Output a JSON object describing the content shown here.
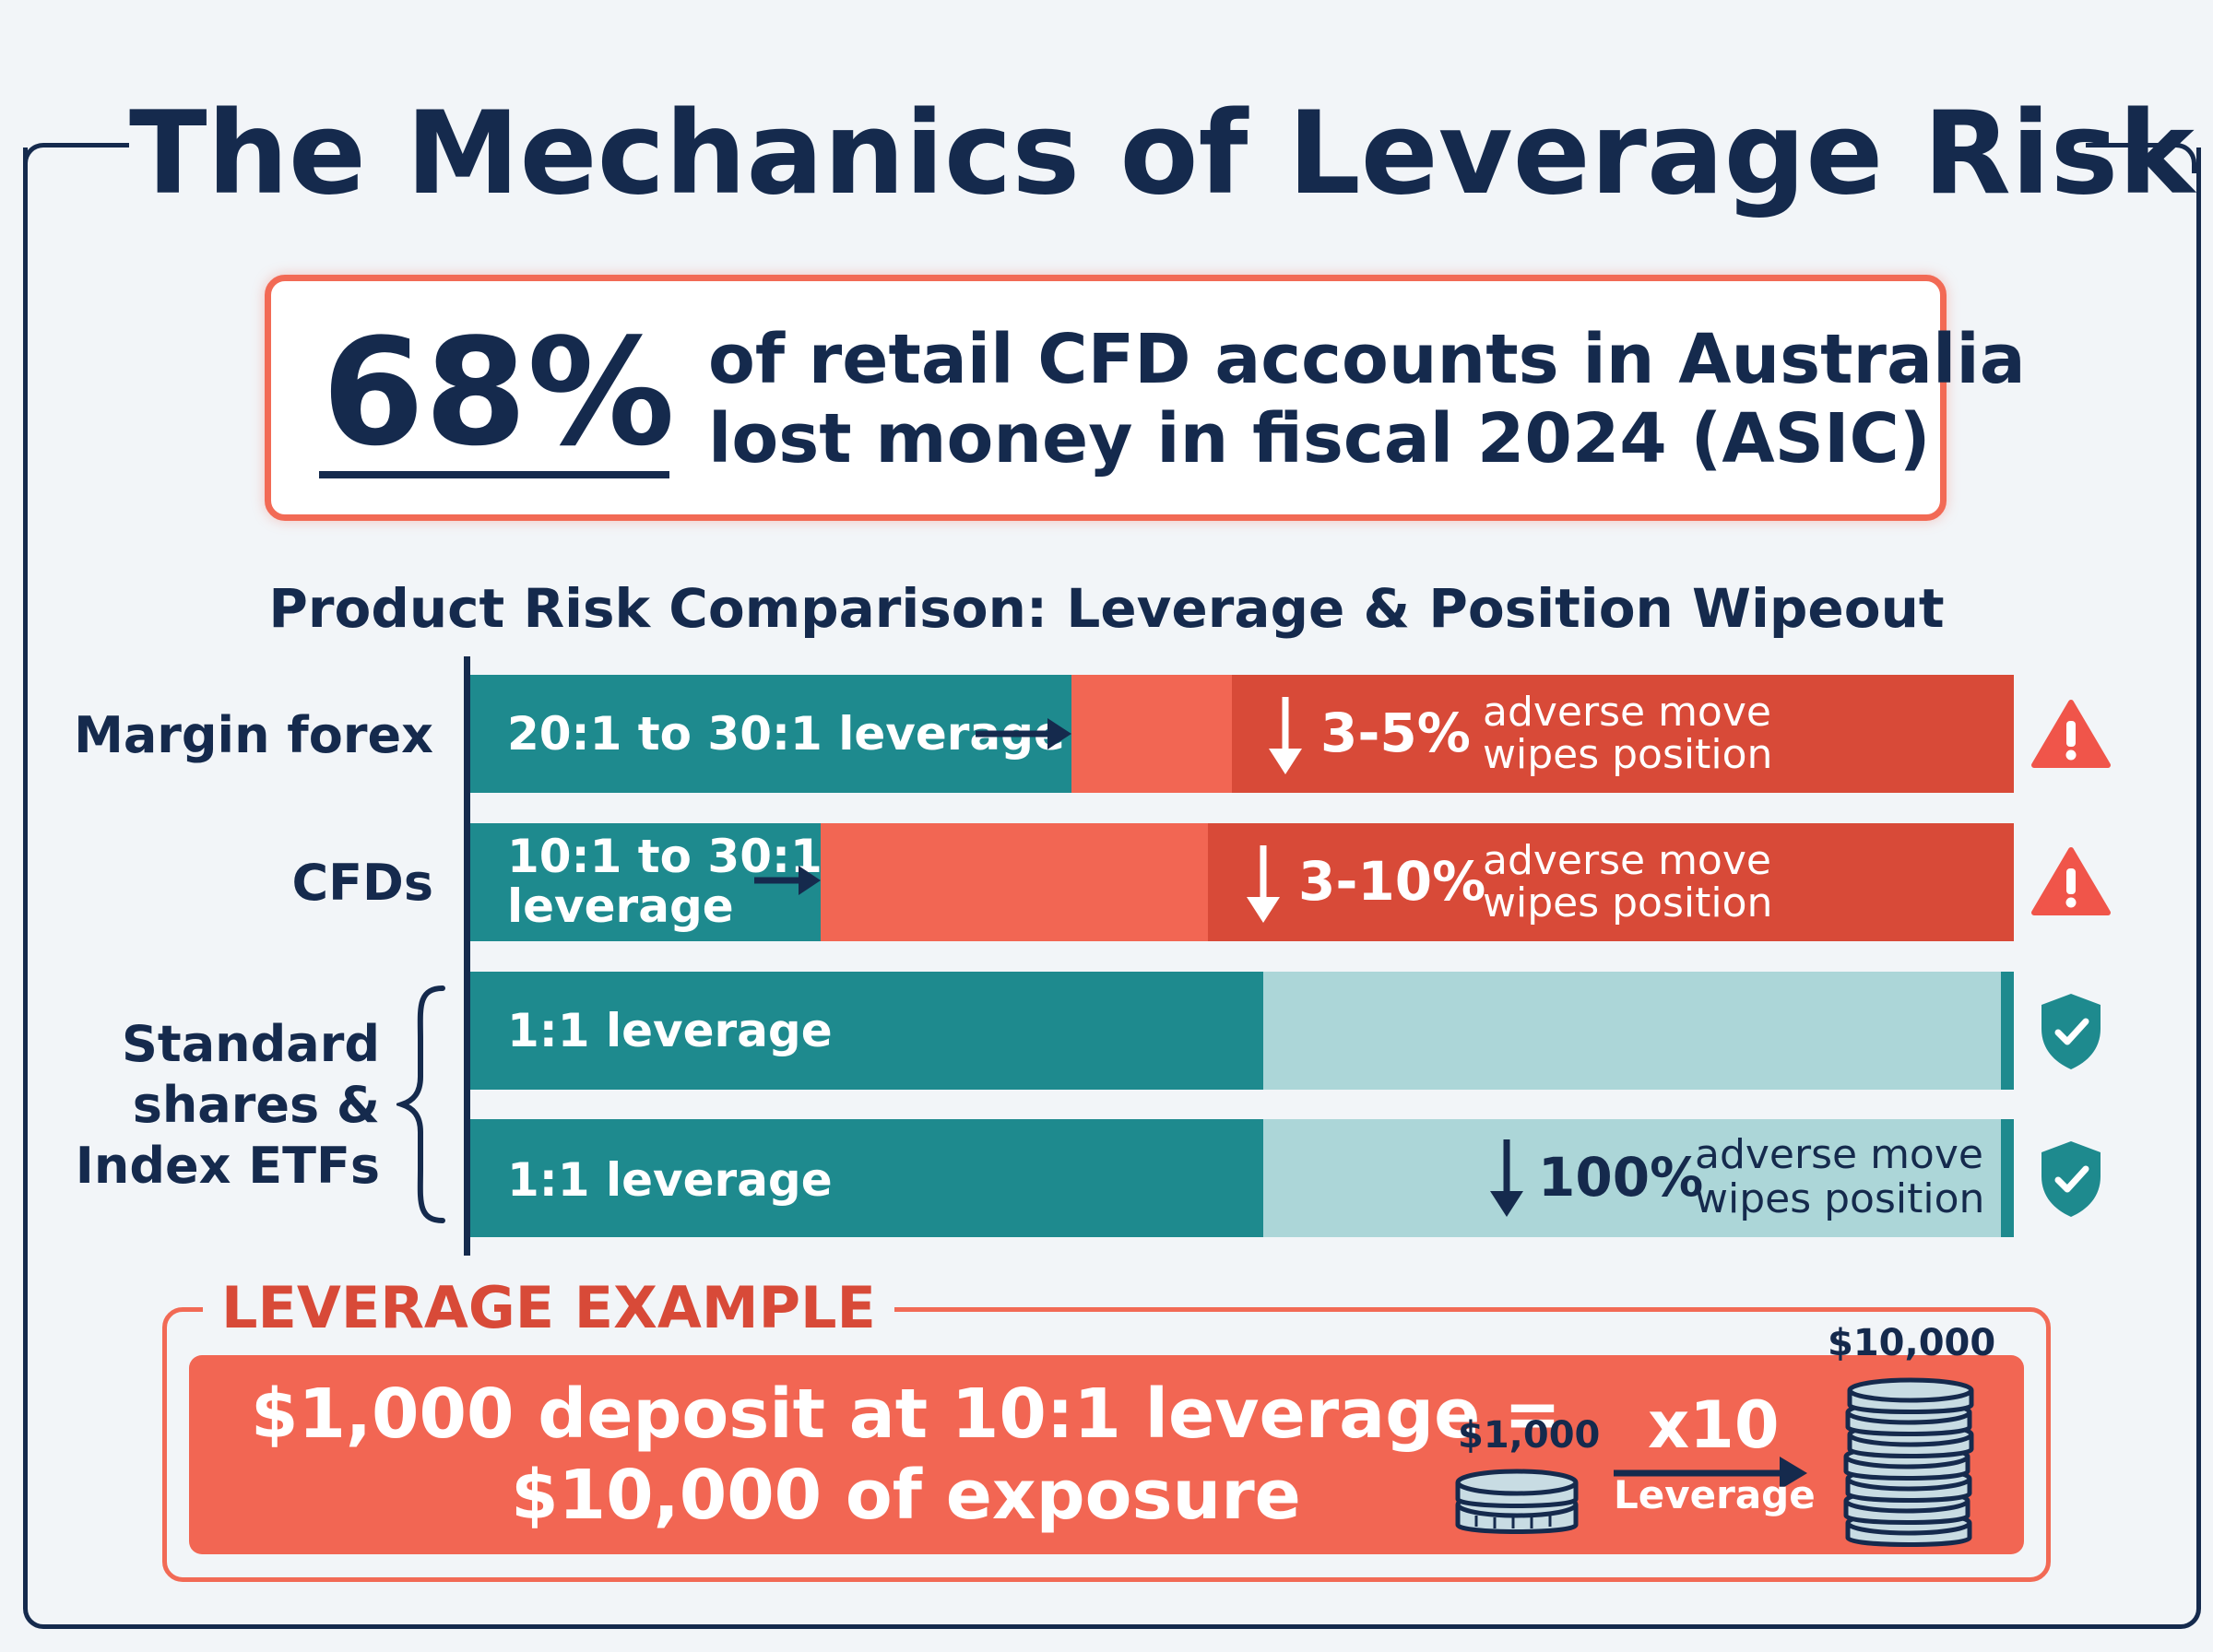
{
  "title": "The Mechanics of Leverage Risk",
  "stat": {
    "number": "68%",
    "line1": "of retail CFD accounts in Australia",
    "line2": "lost money in fiscal 2024 (ASIC)"
  },
  "section_heading": "Product Risk Comparison: Leverage & Position Wipeout",
  "rows": [
    {
      "label": "Margin forex",
      "bar_label": "20:1 to 30:1 leverage",
      "wipe_pct": "3-5%",
      "wipe_line1": "adverse move",
      "wipe_line2": "wipes position",
      "status_icon": "warning-triangle-icon"
    },
    {
      "label": "CFDs",
      "bar_label_line1": "10:1 to 30:1",
      "bar_label_line2": "leverage",
      "wipe_pct": "3-10%",
      "wipe_line1": "adverse move",
      "wipe_line2": "wipes position",
      "status_icon": "warning-triangle-icon"
    },
    {
      "bar_label": "1:1 leverage",
      "status_icon": "shield-check-icon"
    },
    {
      "bar_label": "1:1 leverage",
      "wipe_pct": "100%",
      "wipe_line1": "adverse move",
      "wipe_line2": "wipes position",
      "status_icon": "shield-check-icon"
    }
  ],
  "group_label": {
    "line1": "Standard",
    "line2": "shares &",
    "line3": "Index ETFs"
  },
  "example": {
    "heading": "LEVERAGE EXAMPLE",
    "line1": "$1,000 deposit at 10:1 leverage =",
    "line2": "$10,000 of exposure",
    "deposit_label": "$1,000",
    "multiplier": "x10",
    "multiplier_sub": "Leverage",
    "exposure_label": "$10,000"
  },
  "colors": {
    "navy": "#152a4d",
    "teal": "#1e8a8e",
    "light_teal": "#acd6d8",
    "coral": "#f26653",
    "red": "#d84a38",
    "warning": "#f0554a"
  }
}
